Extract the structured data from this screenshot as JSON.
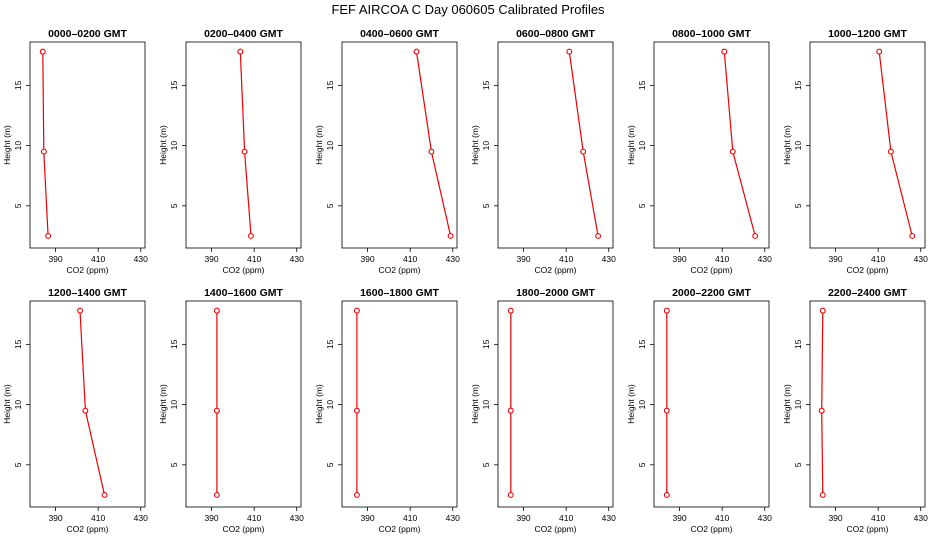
{
  "title": "FEF AIRCOA C  Day 060605  Calibrated Profiles",
  "line_color": "#ee0000",
  "chart_data": {
    "type": "line",
    "ylabel": "Height (m)",
    "xlabel": "CO2 (ppm)",
    "xlim": [
      378,
      432
    ],
    "ylim": [
      1.5,
      18.6
    ],
    "x_ticks": [
      390,
      410,
      430
    ],
    "x_tick_labels": [
      "390",
      "410",
      "430"
    ],
    "y_ticks": [
      5,
      10,
      15
    ],
    "y_tick_labels": [
      "5",
      "10",
      "15"
    ],
    "grid": false,
    "panels": [
      {
        "title": "0000–0200 GMT",
        "heights": [
          17.8,
          9.5,
          2.5
        ],
        "co2": [
          384.0,
          384.5,
          386.5
        ]
      },
      {
        "title": "0200–0400 GMT",
        "heights": [
          17.8,
          9.5,
          2.5
        ],
        "co2": [
          403.5,
          405.5,
          408.5
        ]
      },
      {
        "title": "0400–0600 GMT",
        "heights": [
          17.8,
          9.5,
          2.5
        ],
        "co2": [
          413.0,
          420.0,
          429.0
        ]
      },
      {
        "title": "0600–0800 GMT",
        "heights": [
          17.8,
          9.5,
          2.5
        ],
        "co2": [
          411.5,
          418.0,
          425.0
        ]
      },
      {
        "title": "0800–1000 GMT",
        "heights": [
          17.8,
          9.5,
          2.5
        ],
        "co2": [
          411.0,
          415.0,
          425.5
        ]
      },
      {
        "title": "1000–1200 GMT",
        "heights": [
          17.8,
          9.5,
          2.5
        ],
        "co2": [
          410.5,
          416.0,
          426.0
        ]
      },
      {
        "title": "1200–1400 GMT",
        "heights": [
          17.8,
          9.5,
          2.5
        ],
        "co2": [
          401.5,
          404.0,
          413.0
        ]
      },
      {
        "title": "1400–1600 GMT",
        "heights": [
          17.8,
          9.5,
          2.5
        ],
        "co2": [
          392.5,
          392.5,
          392.5
        ]
      },
      {
        "title": "1600–1800 GMT",
        "heights": [
          17.8,
          9.5,
          2.5
        ],
        "co2": [
          385.0,
          385.0,
          385.0
        ]
      },
      {
        "title": "1800–2000 GMT",
        "heights": [
          17.8,
          9.5,
          2.5
        ],
        "co2": [
          384.0,
          384.0,
          384.0
        ]
      },
      {
        "title": "2000–2200 GMT",
        "heights": [
          17.8,
          9.5,
          2.5
        ],
        "co2": [
          384.0,
          384.0,
          384.0
        ]
      },
      {
        "title": "2200–2400 GMT",
        "heights": [
          17.8,
          9.5,
          2.5
        ],
        "co2": [
          384.0,
          383.5,
          384.0
        ]
      }
    ]
  }
}
